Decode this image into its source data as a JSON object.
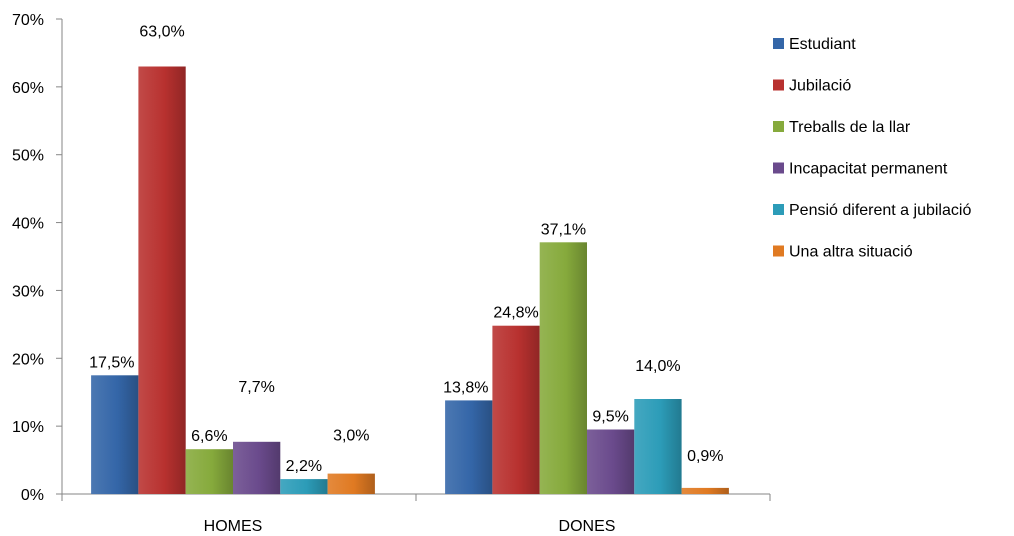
{
  "chart_data": {
    "type": "bar",
    "title": "",
    "xlabel": "",
    "ylabel": "",
    "categories": [
      "HOMES",
      "DONES"
    ],
    "ylim": [
      0,
      70
    ],
    "yticks": [
      "0%",
      "10%",
      "20%",
      "30%",
      "40%",
      "50%",
      "60%",
      "70%"
    ],
    "grid": false,
    "legend_position": "right",
    "series": [
      {
        "name": "Estudiant",
        "color": "#3466a8",
        "values": [
          17.5,
          13.8
        ],
        "labels": [
          "17,5%",
          "13,8%"
        ]
      },
      {
        "name": "Jubilació",
        "color": "#b8312f",
        "values": [
          63.0,
          24.8
        ],
        "labels": [
          "63,0%",
          "24,8%"
        ]
      },
      {
        "name": "Treballs de la llar",
        "color": "#86aa3c",
        "values": [
          6.6,
          37.1
        ],
        "labels": [
          "6,6%",
          "37,1%"
        ]
      },
      {
        "name": "Incapacitat permanent",
        "color": "#6a4a8c",
        "values": [
          7.7,
          9.5
        ],
        "labels": [
          "7,7%",
          "9,5%"
        ]
      },
      {
        "name": "Pensió diferent a jubilació",
        "color": "#2c9cb8",
        "values": [
          2.2,
          14.0
        ],
        "labels": [
          "2,2%",
          "14,0%"
        ]
      },
      {
        "name": "Una altra situació",
        "color": "#e07a22",
        "values": [
          3.0,
          0.9
        ],
        "labels": [
          "3,0%",
          "0,9%"
        ]
      }
    ]
  }
}
